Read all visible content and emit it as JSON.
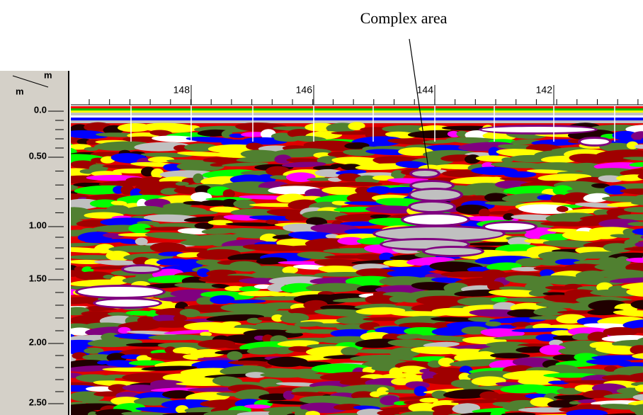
{
  "annotation": "Complex area",
  "axis": {
    "x_unit": "m",
    "y_unit": "m",
    "x_labels": [
      "148",
      "146",
      "144",
      "142"
    ],
    "y_labels": [
      "0.0",
      "0.50",
      "1.00",
      "1.50",
      "2.00",
      "2.50"
    ]
  }
}
